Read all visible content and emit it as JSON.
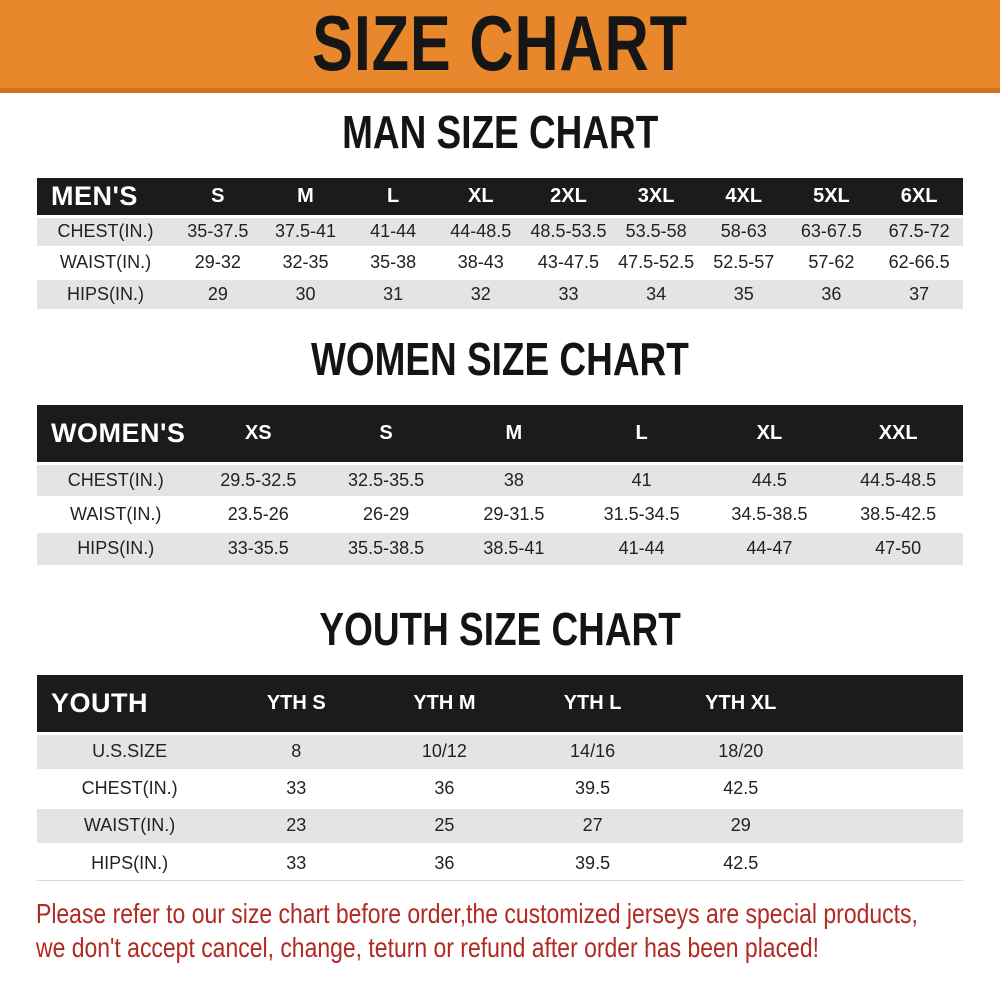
{
  "banner": {
    "title": "SIZE CHART",
    "bg_color": "#e8872b",
    "text_color": "#161616"
  },
  "sections": {
    "men": {
      "title": "MAN SIZE CHART",
      "header_label": "MEN'S",
      "columns": [
        "S",
        "M",
        "L",
        "XL",
        "2XL",
        "3XL",
        "4XL",
        "5XL",
        "6XL"
      ],
      "rows": [
        {
          "label": "CHEST(IN.)",
          "values": [
            "35-37.5",
            "37.5-41",
            "41-44",
            "44-48.5",
            "48.5-53.5",
            "53.5-58",
            "58-63",
            "63-67.5",
            "67.5-72"
          ]
        },
        {
          "label": "WAIST(IN.)",
          "values": [
            "29-32",
            "32-35",
            "35-38",
            "38-43",
            "43-47.5",
            "47.5-52.5",
            "52.5-57",
            "57-62",
            "62-66.5"
          ]
        },
        {
          "label": "HIPS(IN.)",
          "values": [
            "29",
            "30",
            "31",
            "32",
            "33",
            "34",
            "35",
            "36",
            "37"
          ]
        }
      ]
    },
    "women": {
      "title": "WOMEN SIZE CHART",
      "header_label": "WOMEN'S",
      "columns": [
        "XS",
        "S",
        "M",
        "L",
        "XL",
        "XXL"
      ],
      "rows": [
        {
          "label": "CHEST(IN.)",
          "values": [
            "29.5-32.5",
            "32.5-35.5",
            "38",
            "41",
            "44.5",
            "44.5-48.5"
          ]
        },
        {
          "label": "WAIST(IN.)",
          "values": [
            "23.5-26",
            "26-29",
            "29-31.5",
            "31.5-34.5",
            "34.5-38.5",
            "38.5-42.5"
          ]
        },
        {
          "label": "HIPS(IN.)",
          "values": [
            "33-35.5",
            "35.5-38.5",
            "38.5-41",
            "41-44",
            "44-47",
            "47-50"
          ]
        }
      ]
    },
    "youth": {
      "title": "YOUTH SIZE CHART",
      "header_label": "YOUTH",
      "columns": [
        "YTH S",
        "YTH M",
        "YTH L",
        "YTH XL"
      ],
      "rows": [
        {
          "label": "U.S.SIZE",
          "values": [
            "8",
            "10/12",
            "14/16",
            "18/20"
          ]
        },
        {
          "label": "CHEST(IN.)",
          "values": [
            "33",
            "36",
            "39.5",
            "42.5"
          ]
        },
        {
          "label": "WAIST(IN.)",
          "values": [
            "23",
            "25",
            "27",
            "29"
          ]
        },
        {
          "label": "HIPS(IN.)",
          "values": [
            "33",
            "36",
            "39.5",
            "42.5"
          ]
        }
      ]
    }
  },
  "footer": {
    "line1": "Please refer to our size chart before order,the customized jerseys are special products,",
    "line2": "we don't accept cancel, change, teturn or refund after order has been placed!",
    "text_color": "#b22a22"
  },
  "colors": {
    "header_row_bg": "#1b1b1b",
    "stripe_row_bg": "#e4e4e6",
    "banner_orange": "#e8872b"
  }
}
